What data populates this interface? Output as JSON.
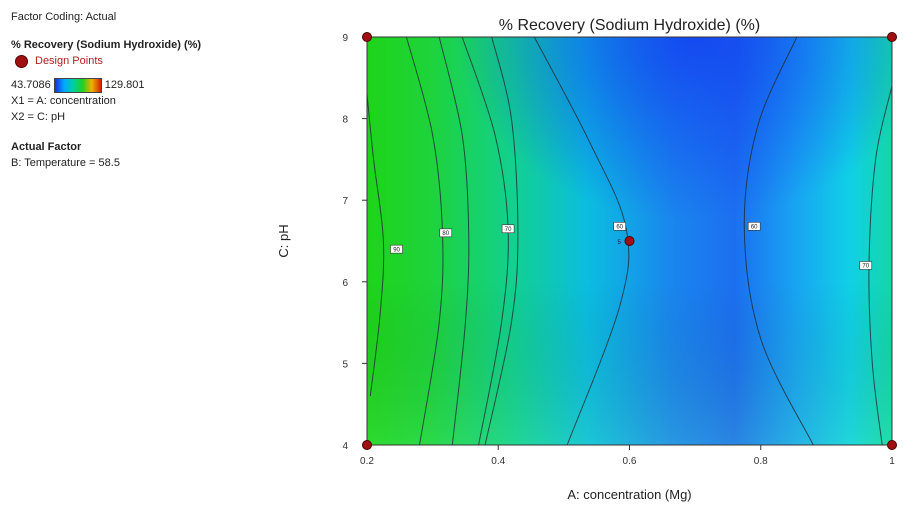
{
  "sidebar": {
    "coding": "Factor Coding: Actual",
    "response": "% Recovery (Sodium Hydroxide) (%)",
    "design_points": "Design Points",
    "scale_min": "43.7086",
    "scale_max": "129.801",
    "x1": "X1 = A: concentration",
    "x2": "X2 = C: pH",
    "actual_factor_title": "Actual Factor",
    "actual_factor": "B: Temperature = 58.5"
  },
  "chart_data": {
    "type": "contour",
    "title": "% Recovery (Sodium Hydroxide) (%)",
    "xlabel": "A: concentration (Mg)",
    "ylabel": "C: pH",
    "xlim": [
      0.2,
      1.0
    ],
    "ylim": [
      4,
      9
    ],
    "xticks": [
      "0.2",
      "0.4",
      "0.6",
      "0.8",
      "1"
    ],
    "yticks": [
      "4",
      "5",
      "6",
      "7",
      "8",
      "9"
    ],
    "colorbar": {
      "min": 43.7086,
      "max": 129.801,
      "colors": [
        "#1a2fe0",
        "#00a8ff",
        "#00d0a0",
        "#20d020",
        "#f0b000",
        "#d02000"
      ]
    },
    "contours": [
      {
        "level": "90",
        "points": [
          [
            0.2,
            8.3
          ],
          [
            0.21,
            7.5
          ],
          [
            0.225,
            6.5
          ],
          [
            0.22,
            5.6
          ],
          [
            0.205,
            4.6
          ]
        ],
        "label_at": [
          0.245,
          6.4
        ]
      },
      {
        "level": "80",
        "points": [
          [
            0.26,
            9.0
          ],
          [
            0.3,
            7.8
          ],
          [
            0.315,
            6.6
          ],
          [
            0.31,
            5.5
          ],
          [
            0.28,
            4.0
          ]
        ],
        "label_at": [
          0.32,
          6.6
        ]
      },
      {
        "level": "80",
        "points": [
          [
            0.31,
            9.0
          ],
          [
            0.345,
            7.8
          ],
          [
            0.355,
            6.6
          ],
          [
            0.35,
            5.5
          ],
          [
            0.33,
            4.0
          ]
        ]
      },
      {
        "level": "70",
        "points": [
          [
            0.345,
            9.0
          ],
          [
            0.395,
            7.8
          ],
          [
            0.415,
            6.65
          ],
          [
            0.405,
            5.5
          ],
          [
            0.37,
            4.0
          ]
        ],
        "label_at": [
          0.415,
          6.65
        ]
      },
      {
        "level": "70",
        "points": [
          [
            0.39,
            9.0
          ],
          [
            0.42,
            8.0
          ],
          [
            0.43,
            6.6
          ],
          [
            0.42,
            5.5
          ],
          [
            0.38,
            4.0
          ]
        ]
      },
      {
        "level": "60",
        "points": [
          [
            0.455,
            9.0
          ],
          [
            0.54,
            7.7
          ],
          [
            0.595,
            6.65
          ],
          [
            0.585,
            5.7
          ],
          [
            0.505,
            4.0
          ]
        ],
        "label_at": [
          0.585,
          6.68
        ]
      },
      {
        "level": "60",
        "points": [
          [
            0.855,
            9.0
          ],
          [
            0.795,
            7.9
          ],
          [
            0.775,
            6.65
          ],
          [
            0.8,
            5.3
          ],
          [
            0.88,
            4.0
          ]
        ],
        "label_at": [
          0.79,
          6.68
        ]
      },
      {
        "level": "70",
        "points": [
          [
            1.0,
            8.4
          ],
          [
            0.975,
            7.5
          ],
          [
            0.965,
            6.2
          ],
          [
            0.97,
            5.0
          ],
          [
            0.985,
            4.0
          ]
        ],
        "label_at": [
          0.96,
          6.2
        ]
      }
    ],
    "design_points": [
      [
        0.2,
        9
      ],
      [
        1.0,
        9
      ],
      [
        0.2,
        4
      ],
      [
        1.0,
        4
      ],
      [
        0.6,
        6.5
      ]
    ],
    "center_point_label": "5"
  }
}
